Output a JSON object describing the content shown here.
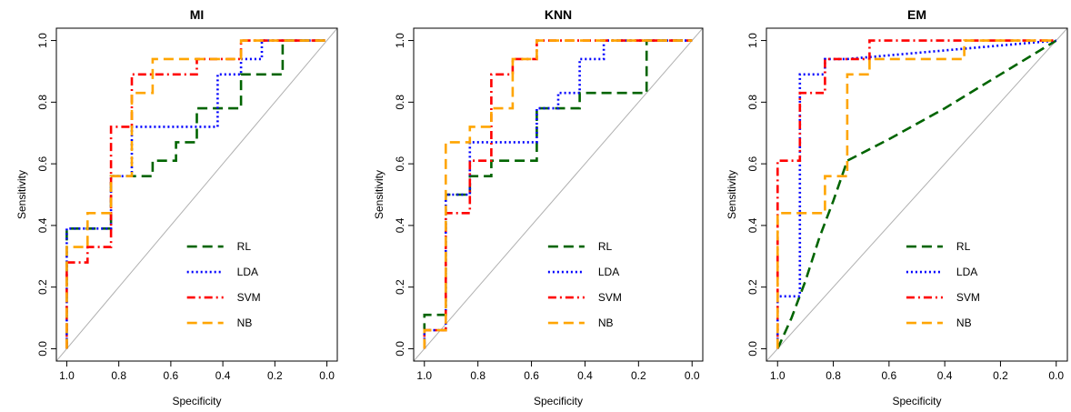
{
  "chart_data": [
    {
      "type": "line",
      "title": "MI",
      "xlabel": "Specificity",
      "ylabel": "Sensitivity",
      "xlim": [
        1.0,
        0.0
      ],
      "ylim": [
        0.0,
        1.0
      ],
      "x_reversed": true,
      "xticks": [
        "1.0",
        "0.8",
        "0.6",
        "0.4",
        "0.2",
        "0.0"
      ],
      "yticks": [
        "0.0",
        "0.2",
        "0.4",
        "0.6",
        "0.8",
        "1.0"
      ],
      "grid": false,
      "legend_position": "bottom-right",
      "reference_line": "diagonal",
      "series": [
        {
          "name": "RL",
          "color": "#006400",
          "dash": "long-dash",
          "points": [
            [
              1.0,
              0.0
            ],
            [
              1.0,
              0.39
            ],
            [
              0.83,
              0.39
            ],
            [
              0.83,
              0.56
            ],
            [
              0.67,
              0.56
            ],
            [
              0.67,
              0.61
            ],
            [
              0.58,
              0.61
            ],
            [
              0.58,
              0.67
            ],
            [
              0.5,
              0.67
            ],
            [
              0.5,
              0.78
            ],
            [
              0.33,
              0.78
            ],
            [
              0.33,
              0.89
            ],
            [
              0.17,
              0.89
            ],
            [
              0.17,
              1.0
            ],
            [
              0.0,
              1.0
            ]
          ]
        },
        {
          "name": "LDA",
          "color": "#0000FF",
          "dash": "dotted",
          "points": [
            [
              1.0,
              0.0
            ],
            [
              1.0,
              0.39
            ],
            [
              0.83,
              0.39
            ],
            [
              0.83,
              0.56
            ],
            [
              0.75,
              0.56
            ],
            [
              0.75,
              0.72
            ],
            [
              0.42,
              0.72
            ],
            [
              0.42,
              0.89
            ],
            [
              0.33,
              0.89
            ],
            [
              0.33,
              0.94
            ],
            [
              0.25,
              0.94
            ],
            [
              0.25,
              1.0
            ],
            [
              0.0,
              1.0
            ]
          ]
        },
        {
          "name": "SVM",
          "color": "#FF0000",
          "dash": "dot-dash",
          "points": [
            [
              1.0,
              0.0
            ],
            [
              1.0,
              0.28
            ],
            [
              0.92,
              0.28
            ],
            [
              0.92,
              0.33
            ],
            [
              0.83,
              0.33
            ],
            [
              0.83,
              0.72
            ],
            [
              0.75,
              0.72
            ],
            [
              0.75,
              0.89
            ],
            [
              0.5,
              0.89
            ],
            [
              0.5,
              0.94
            ],
            [
              0.33,
              0.94
            ],
            [
              0.33,
              1.0
            ],
            [
              0.0,
              1.0
            ]
          ]
        },
        {
          "name": "NB",
          "color": "#FFA500",
          "dash": "long-dash",
          "points": [
            [
              1.0,
              0.0
            ],
            [
              1.0,
              0.33
            ],
            [
              0.92,
              0.33
            ],
            [
              0.92,
              0.44
            ],
            [
              0.83,
              0.44
            ],
            [
              0.83,
              0.56
            ],
            [
              0.75,
              0.56
            ],
            [
              0.75,
              0.83
            ],
            [
              0.67,
              0.83
            ],
            [
              0.67,
              0.94
            ],
            [
              0.33,
              0.94
            ],
            [
              0.33,
              1.0
            ],
            [
              0.0,
              1.0
            ]
          ]
        }
      ]
    },
    {
      "type": "line",
      "title": "KNN",
      "xlabel": "Specificity",
      "ylabel": "Sensitivity",
      "xlim": [
        1.0,
        0.0
      ],
      "ylim": [
        0.0,
        1.0
      ],
      "x_reversed": true,
      "xticks": [
        "1.0",
        "0.8",
        "0.6",
        "0.4",
        "0.2",
        "0.0"
      ],
      "yticks": [
        "0.0",
        "0.2",
        "0.4",
        "0.6",
        "0.8",
        "1.0"
      ],
      "grid": false,
      "legend_position": "bottom-right",
      "reference_line": "diagonal",
      "series": [
        {
          "name": "RL",
          "color": "#006400",
          "dash": "long-dash",
          "points": [
            [
              1.0,
              0.0
            ],
            [
              1.0,
              0.11
            ],
            [
              0.92,
              0.11
            ],
            [
              0.92,
              0.5
            ],
            [
              0.83,
              0.5
            ],
            [
              0.83,
              0.56
            ],
            [
              0.75,
              0.56
            ],
            [
              0.75,
              0.61
            ],
            [
              0.58,
              0.61
            ],
            [
              0.58,
              0.78
            ],
            [
              0.42,
              0.78
            ],
            [
              0.42,
              0.83
            ],
            [
              0.17,
              0.83
            ],
            [
              0.17,
              1.0
            ],
            [
              0.0,
              1.0
            ]
          ]
        },
        {
          "name": "LDA",
          "color": "#0000FF",
          "dash": "dotted",
          "points": [
            [
              1.0,
              0.0
            ],
            [
              1.0,
              0.06
            ],
            [
              0.92,
              0.06
            ],
            [
              0.92,
              0.5
            ],
            [
              0.83,
              0.5
            ],
            [
              0.83,
              0.67
            ],
            [
              0.58,
              0.67
            ],
            [
              0.58,
              0.78
            ],
            [
              0.5,
              0.78
            ],
            [
              0.5,
              0.83
            ],
            [
              0.42,
              0.83
            ],
            [
              0.42,
              0.94
            ],
            [
              0.33,
              0.94
            ],
            [
              0.33,
              1.0
            ],
            [
              0.0,
              1.0
            ]
          ]
        },
        {
          "name": "SVM",
          "color": "#FF0000",
          "dash": "dot-dash",
          "points": [
            [
              1.0,
              0.0
            ],
            [
              1.0,
              0.06
            ],
            [
              0.92,
              0.06
            ],
            [
              0.92,
              0.44
            ],
            [
              0.83,
              0.44
            ],
            [
              0.83,
              0.61
            ],
            [
              0.75,
              0.61
            ],
            [
              0.75,
              0.89
            ],
            [
              0.67,
              0.89
            ],
            [
              0.67,
              0.94
            ],
            [
              0.58,
              0.94
            ],
            [
              0.58,
              1.0
            ],
            [
              0.0,
              1.0
            ]
          ]
        },
        {
          "name": "NB",
          "color": "#FFA500",
          "dash": "long-dash",
          "points": [
            [
              1.0,
              0.0
            ],
            [
              1.0,
              0.06
            ],
            [
              0.92,
              0.06
            ],
            [
              0.92,
              0.67
            ],
            [
              0.83,
              0.67
            ],
            [
              0.83,
              0.72
            ],
            [
              0.75,
              0.72
            ],
            [
              0.75,
              0.78
            ],
            [
              0.67,
              0.78
            ],
            [
              0.67,
              0.94
            ],
            [
              0.58,
              0.94
            ],
            [
              0.58,
              1.0
            ],
            [
              0.0,
              1.0
            ]
          ]
        }
      ]
    },
    {
      "type": "line",
      "title": "EM",
      "xlabel": "Specificity",
      "ylabel": "Sensitivity",
      "xlim": [
        1.0,
        0.0
      ],
      "ylim": [
        0.0,
        1.0
      ],
      "x_reversed": true,
      "xticks": [
        "1.0",
        "0.8",
        "0.6",
        "0.4",
        "0.2",
        "0.0"
      ],
      "yticks": [
        "0.0",
        "0.2",
        "0.4",
        "0.6",
        "0.8",
        "1.0"
      ],
      "grid": false,
      "legend_position": "bottom-right",
      "reference_line": "diagonal",
      "series": [
        {
          "name": "RL",
          "color": "#006400",
          "dash": "long-dash",
          "points": [
            [
              1.0,
              0.0
            ],
            [
              0.95,
              0.1
            ],
            [
              0.9,
              0.22
            ],
            [
              0.85,
              0.36
            ],
            [
              0.8,
              0.48
            ],
            [
              0.75,
              0.61
            ],
            [
              0.6,
              0.68
            ],
            [
              0.4,
              0.78
            ],
            [
              0.2,
              0.89
            ],
            [
              0.0,
              1.0
            ]
          ]
        },
        {
          "name": "LDA",
          "color": "#0000FF",
          "dash": "dotted",
          "points": [
            [
              1.0,
              0.0
            ],
            [
              1.0,
              0.17
            ],
            [
              0.92,
              0.17
            ],
            [
              0.92,
              0.89
            ],
            [
              0.83,
              0.89
            ],
            [
              0.83,
              0.94
            ],
            [
              0.75,
              0.94
            ],
            [
              0.0,
              1.0
            ]
          ]
        },
        {
          "name": "SVM",
          "color": "#FF0000",
          "dash": "dot-dash",
          "points": [
            [
              1.0,
              0.0
            ],
            [
              1.0,
              0.61
            ],
            [
              0.92,
              0.61
            ],
            [
              0.92,
              0.83
            ],
            [
              0.83,
              0.83
            ],
            [
              0.83,
              0.94
            ],
            [
              0.67,
              0.94
            ],
            [
              0.67,
              1.0
            ],
            [
              0.0,
              1.0
            ]
          ]
        },
        {
          "name": "NB",
          "color": "#FFA500",
          "dash": "long-dash",
          "points": [
            [
              1.0,
              0.0
            ],
            [
              1.0,
              0.44
            ],
            [
              0.83,
              0.44
            ],
            [
              0.83,
              0.56
            ],
            [
              0.75,
              0.56
            ],
            [
              0.75,
              0.89
            ],
            [
              0.67,
              0.89
            ],
            [
              0.67,
              0.94
            ],
            [
              0.33,
              0.94
            ],
            [
              0.33,
              1.0
            ],
            [
              0.0,
              1.0
            ]
          ]
        }
      ]
    }
  ]
}
